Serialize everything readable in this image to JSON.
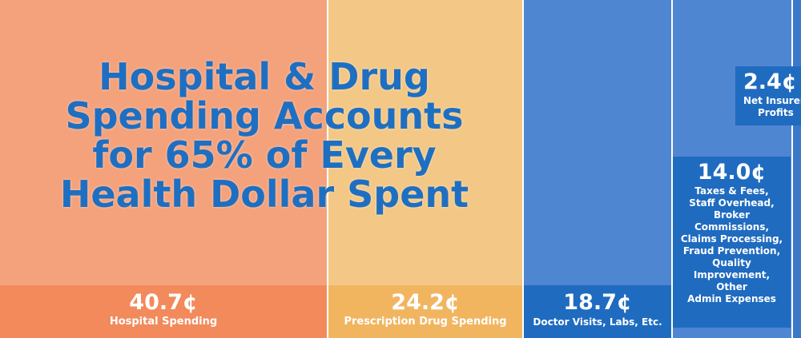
{
  "title": [
    "Hospital & Drug",
    "Spending Accounts",
    "for 65% of Every",
    "Health Dollar Spent"
  ],
  "segments": [
    {
      "value": "40.7¢",
      "label": [
        "Hospital Spending"
      ]
    },
    {
      "value": "24.2¢",
      "label": [
        "Prescription Drug Spending"
      ]
    },
    {
      "value": "18.7¢",
      "label": [
        "Doctor Visits, Labs, Etc."
      ]
    },
    {
      "value": "14.0¢",
      "label": [
        "Taxes & Fees,",
        "Staff Overhead,",
        "Broker",
        "Commissions,",
        "Claims Processing,",
        "Fraud Prevention,",
        "Quality",
        "Improvement,",
        "Other",
        "Admin Expenses"
      ]
    },
    {
      "value": "2.4¢",
      "label": [
        "Net Insurer",
        "Profits"
      ]
    }
  ]
}
